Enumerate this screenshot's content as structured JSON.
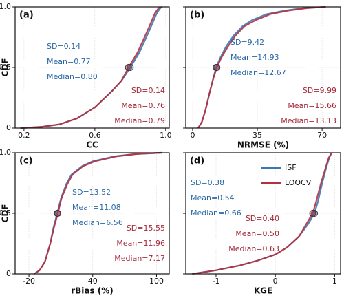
{
  "chart_data": [
    {
      "type": "line",
      "panel_label": "(a)",
      "xlabel": "CC",
      "ylabel": "CDF",
      "xlim": [
        0.15,
        1.02
      ],
      "ylim": [
        0,
        1
      ],
      "xticks": [
        0.2,
        0.6,
        {
          "value": 1,
          "label": "1.0"
        }
      ],
      "yticks": [
        0,
        0.5,
        {
          "value": 1,
          "label": "1.0"
        }
      ],
      "show_ytick_labels": true,
      "grid": true,
      "legend": false,
      "series": [
        {
          "color": "#3a78b5",
          "text_color": "#2a69a6",
          "x": [
            0.18,
            0.3,
            0.4,
            0.5,
            0.6,
            0.65,
            0.7,
            0.75,
            0.8,
            0.85,
            0.9,
            0.93,
            0.95,
            0.97,
            0.98
          ],
          "values": [
            0,
            0.01,
            0.03,
            0.08,
            0.17,
            0.24,
            0.31,
            0.39,
            0.5,
            0.62,
            0.78,
            0.88,
            0.95,
            0.99,
            1
          ],
          "median_marker": {
            "x": 0.8,
            "y": 0.5
          },
          "stats": [
            "SD=0.14",
            "Mean=0.77",
            "Median=0.80"
          ]
        },
        {
          "color": "#b5303f",
          "text_color": "#a52838",
          "x": [
            0.18,
            0.3,
            0.4,
            0.5,
            0.6,
            0.65,
            0.7,
            0.75,
            0.79,
            0.84,
            0.89,
            0.92,
            0.94,
            0.96,
            0.98
          ],
          "values": [
            0,
            0.01,
            0.03,
            0.08,
            0.17,
            0.24,
            0.31,
            0.39,
            0.5,
            0.62,
            0.78,
            0.88,
            0.95,
            0.99,
            1
          ],
          "median_marker": {
            "x": 0.79,
            "y": 0.5
          },
          "stats": [
            "SD=0.14",
            "Mean=0.76",
            "Median=0.79"
          ]
        }
      ]
    },
    {
      "type": "line",
      "panel_label": "(b)",
      "xlabel": "NRMSE (%)",
      "xlim": [
        -3.7,
        80
      ],
      "ylim": [
        0,
        1
      ],
      "xticks": [
        0,
        35,
        70
      ],
      "yticks": [
        0,
        0.5,
        1
      ],
      "show_ytick_labels": false,
      "grid": true,
      "legend": false,
      "series": [
        {
          "color": "#3a78b5",
          "text_color": "#2a69a6",
          "x": [
            3,
            5,
            7,
            9,
            11,
            12.67,
            15,
            18,
            22,
            27,
            32,
            40,
            50,
            60,
            72
          ],
          "values": [
            0,
            0.05,
            0.15,
            0.28,
            0.4,
            0.5,
            0.58,
            0.67,
            0.76,
            0.84,
            0.89,
            0.94,
            0.97,
            0.99,
            1
          ],
          "median_marker": {
            "x": 12.67,
            "y": 0.5
          },
          "stats": [
            "SD=9.42",
            "Mean=14.93",
            "Median=12.67"
          ]
        },
        {
          "color": "#b5303f",
          "text_color": "#a52838",
          "x": [
            3,
            5,
            7,
            9,
            11,
            13.13,
            15.5,
            19,
            23,
            28,
            34,
            42,
            52,
            62,
            72
          ],
          "values": [
            0,
            0.05,
            0.15,
            0.28,
            0.4,
            0.5,
            0.58,
            0.67,
            0.76,
            0.84,
            0.89,
            0.94,
            0.97,
            0.99,
            1
          ],
          "median_marker": {
            "x": 13.13,
            "y": 0.5
          },
          "stats": [
            "SD=9.99",
            "Mean=15.66",
            "Median=13.13"
          ]
        }
      ]
    },
    {
      "type": "line",
      "panel_label": "(c)",
      "xlabel": "rBias (%)",
      "ylabel": "CDF",
      "xlim": [
        -33,
        112
      ],
      "ylim": [
        0,
        1
      ],
      "xticks": [
        -20,
        40,
        100
      ],
      "yticks": [
        0,
        0.5,
        {
          "value": 1,
          "label": "1.0"
        }
      ],
      "show_ytick_labels": true,
      "grid": true,
      "legend": false,
      "series": [
        {
          "color": "#3a78b5",
          "text_color": "#2a69a6",
          "x": [
            -15,
            -10,
            -5,
            0,
            3,
            6.56,
            10,
            15,
            20,
            30,
            40,
            60,
            80,
            105
          ],
          "values": [
            0,
            0.03,
            0.1,
            0.25,
            0.38,
            0.5,
            0.62,
            0.74,
            0.82,
            0.89,
            0.93,
            0.97,
            0.99,
            1
          ],
          "median_marker": {
            "x": 6.56,
            "y": 0.5
          },
          "stats": [
            "SD=13.52",
            "Mean=11.08",
            "Median=6.56"
          ]
        },
        {
          "color": "#b5303f",
          "text_color": "#a52838",
          "x": [
            -15,
            -10,
            -5,
            0,
            3.5,
            7.17,
            10.5,
            16,
            21,
            31,
            42,
            62,
            82,
            105
          ],
          "values": [
            0,
            0.03,
            0.1,
            0.25,
            0.38,
            0.5,
            0.62,
            0.74,
            0.82,
            0.89,
            0.93,
            0.97,
            0.99,
            1
          ],
          "median_marker": {
            "x": 7.17,
            "y": 0.5
          },
          "stats": [
            "SD=15.55",
            "Mean=11.96",
            "Median=7.17"
          ]
        }
      ]
    },
    {
      "type": "line",
      "panel_label": "(d)",
      "xlabel": "KGE",
      "xlim": [
        -1.51,
        1.1
      ],
      "ylim": [
        0,
        1
      ],
      "xticks": [
        -1,
        0,
        1
      ],
      "yticks": [
        0,
        0.5,
        1
      ],
      "show_ytick_labels": false,
      "grid": true,
      "legend": true,
      "series": [
        {
          "name": "ISF",
          "color": "#3a78b5",
          "text_color": "#2a69a6",
          "x": [
            -1.4,
            -1,
            -0.6,
            -0.3,
            0,
            0.2,
            0.4,
            0.55,
            0.66,
            0.72,
            0.79,
            0.86,
            0.91,
            0.95
          ],
          "values": [
            0,
            0.03,
            0.07,
            0.11,
            0.16,
            0.22,
            0.31,
            0.41,
            0.5,
            0.6,
            0.75,
            0.88,
            0.96,
            1
          ],
          "median_marker": {
            "x": 0.66,
            "y": 0.5
          },
          "stats": [
            "SD=0.38",
            "Mean=0.54",
            "Median=0.66"
          ]
        },
        {
          "name": "LOOCV",
          "color": "#b5303f",
          "text_color": "#a52838",
          "x": [
            -1.4,
            -1,
            -0.6,
            -0.3,
            0,
            0.2,
            0.4,
            0.52,
            0.63,
            0.69,
            0.77,
            0.85,
            0.9,
            0.95
          ],
          "values": [
            0,
            0.03,
            0.07,
            0.11,
            0.16,
            0.22,
            0.31,
            0.41,
            0.5,
            0.6,
            0.75,
            0.88,
            0.96,
            1
          ],
          "median_marker": {
            "x": 0.63,
            "y": 0.5
          },
          "stats": [
            "SD=0.40",
            "Mean=0.50",
            "Median=0.63"
          ]
        }
      ]
    }
  ]
}
